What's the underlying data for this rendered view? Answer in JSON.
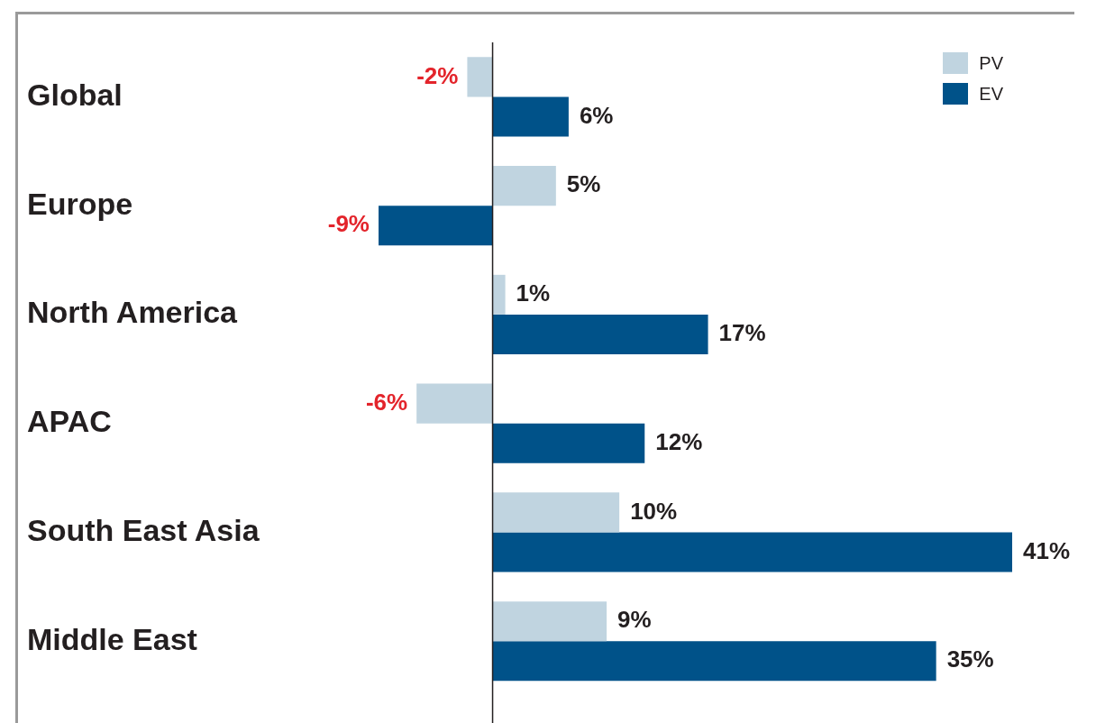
{
  "chart_data": {
    "type": "bar",
    "orientation": "horizontal",
    "categories": [
      "Global",
      "Europe",
      "North America",
      "APAC",
      "South East Asia",
      "Middle East"
    ],
    "series": [
      {
        "name": "PV",
        "color": "#c0d4e0",
        "values": [
          -2,
          5,
          1,
          -6,
          10,
          9
        ],
        "value_labels": [
          "-2%",
          "5%",
          "1%",
          "-6%",
          "10%",
          "9%"
        ]
      },
      {
        "name": "EV",
        "color": "#005289",
        "values": [
          6,
          -9,
          17,
          12,
          41,
          35
        ],
        "value_labels": [
          "6%",
          "-9%",
          "17%",
          "12%",
          "41%",
          "35%"
        ]
      }
    ],
    "legend": "top right",
    "grid": false
  }
}
